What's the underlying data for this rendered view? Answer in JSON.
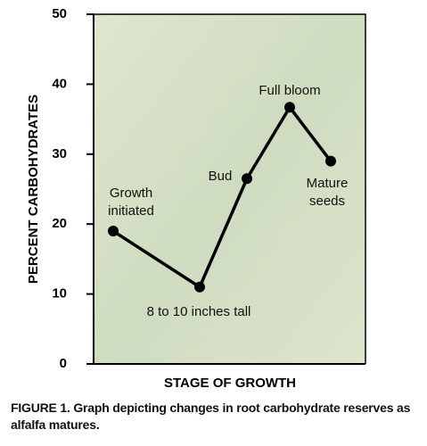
{
  "chart_data": {
    "type": "line",
    "ylabel": "PERCENT CARBOHYDRATES",
    "xlabel": "STAGE OF GROWTH",
    "caption": "FIGURE 1. Graph depicting changes in root carbohydrate reserves as alfalfa matures.",
    "categories": [
      "Growth initiated",
      "8 to 10 inches tall",
      "Bud",
      "Full bloom",
      "Mature seeds"
    ],
    "values": [
      19,
      11,
      26.5,
      36.7,
      29
    ],
    "color": "#000000",
    "ylim": [
      0,
      50
    ],
    "yticks": [
      0,
      10,
      20,
      30,
      40,
      50
    ]
  }
}
